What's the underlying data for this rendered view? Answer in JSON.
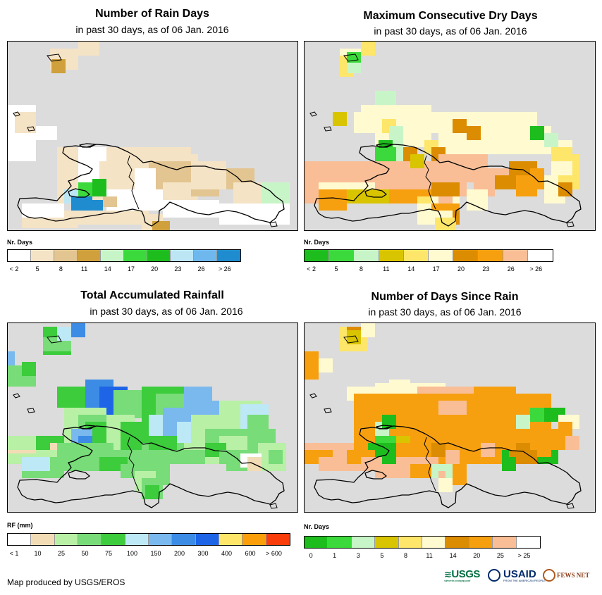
{
  "panels": {
    "rain_days": {
      "title": "Number of Rain Days",
      "subtitle": "in past 30 days, as of 06 Jan. 2016",
      "legend_title": "Nr. Days",
      "legend_colors": [
        "#ffffff",
        "#f5e3c6",
        "#e3c592",
        "#cfa03b",
        "#c8f5c8",
        "#3cd93c",
        "#1ebd1e",
        "#bde6f5",
        "#6fb8ee",
        "#1e8ccf"
      ],
      "legend_labels": [
        "< 2",
        "5",
        "8",
        "11",
        "14",
        "17",
        "20",
        "23",
        "26",
        "> 26"
      ]
    },
    "dry_days": {
      "title": "Maximum Consecutive Dry Days",
      "subtitle": "in past 30 days, as of 06 Jan. 2016",
      "legend_title": "Nr. Days",
      "legend_colors": [
        "#1ebd1e",
        "#3cd93c",
        "#c8f5c8",
        "#d9c400",
        "#fde66a",
        "#fffad0",
        "#dc8c00",
        "#f7a00f",
        "#f9be96",
        "#ffffff"
      ],
      "legend_labels": [
        "< 2",
        "5",
        "8",
        "11",
        "14",
        "17",
        "20",
        "23",
        "26",
        "> 26"
      ]
    },
    "rainfall": {
      "title": "Total Accumulated Rainfall",
      "subtitle": "in past 30 days, as of 06 Jan. 2016",
      "legend_title": "RF (mm)",
      "legend_colors": [
        "#ffffff",
        "#f2dcb5",
        "#b8f0a6",
        "#78dc78",
        "#3ccc3c",
        "#bde8f5",
        "#7ab9ee",
        "#3c8ce6",
        "#1e64e6",
        "#fde66a",
        "#fa9f0a",
        "#fa3c0a"
      ],
      "legend_labels": [
        "< 1",
        "10",
        "25",
        "50",
        "75",
        "100",
        "150",
        "200",
        "300",
        "400",
        "600",
        "> 600"
      ]
    },
    "days_since_rain": {
      "title": "Number of Days Since Rain",
      "subtitle": "in past 30 days, as of 06 Jan. 2016",
      "legend_title": "Nr. Days",
      "legend_colors": [
        "#1ebd1e",
        "#3cd93c",
        "#c8f5c8",
        "#d9c400",
        "#fde66a",
        "#fffad0",
        "#dc8c00",
        "#f7a00f",
        "#f9be96",
        "#ffffff"
      ],
      "legend_labels": [
        "0",
        "1",
        "3",
        "5",
        "8",
        "11",
        "14",
        "20",
        "25",
        "> 25"
      ]
    }
  },
  "footer": "Map produced by USGS/EROS",
  "logos": {
    "usgs": "USGS",
    "usgs_tagline": "science for a changing world",
    "usaid": "USAID",
    "usaid_tagline": "FROM THE AMERICAN PEOPLE",
    "fewsnet": "FEWS NET"
  }
}
